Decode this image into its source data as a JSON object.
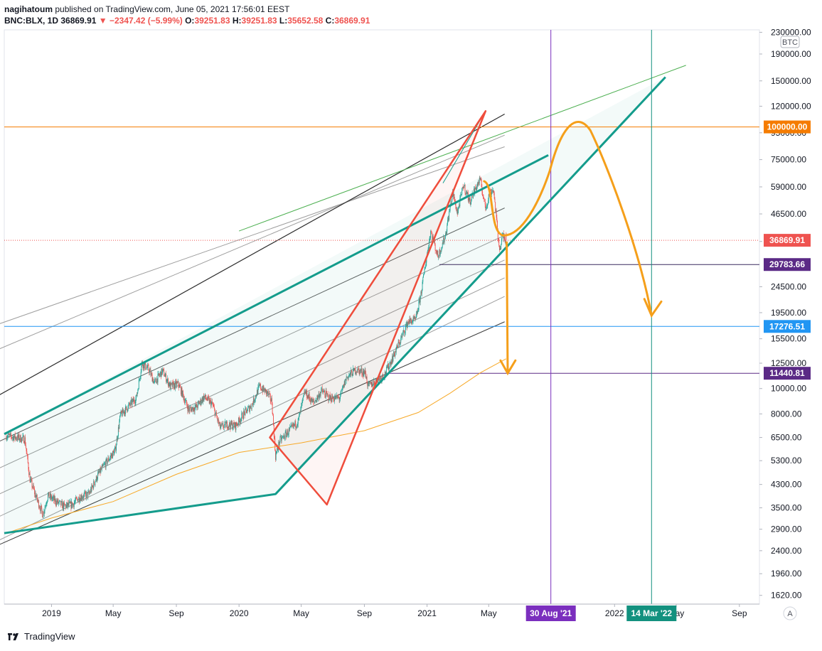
{
  "header": {
    "author": "nagihatoum",
    "published": "published on TradingView.com, June 05, 2021 17:56:01 EEST",
    "symbol": "BNC:BLX, 1D",
    "last": "36869.91",
    "arrow": "▼",
    "change": "−2347.42 (−5.99%)",
    "o_label": "O:",
    "o": "39251.83",
    "h_label": "H:",
    "h": "39251.83",
    "l_label": "L:",
    "l": "35652.58",
    "c_label": "C:",
    "c": "36869.91"
  },
  "footer": {
    "brand": "TradingView"
  },
  "colors": {
    "up": "#26a69a",
    "down": "#ef5350",
    "channel": "#149c8c",
    "wedge": "#ef4d3c",
    "projection": "#f59f1a",
    "ma": "#f7a928",
    "purple": "#7b2fbe",
    "teal": "#13917f",
    "blue": "#2196f3",
    "orange": "#f57c00"
  },
  "chart_data": {
    "type": "candlestick",
    "symbol": "BNC:BLX",
    "interval": "1D",
    "y_scale": "log",
    "currency_badge": "BTC",
    "ylim": [
      1500,
      235000
    ],
    "y_ticks": [
      "230000.00",
      "190000.00",
      "150000.00",
      "120000.00",
      "95000.00",
      "75000.00",
      "59000.00",
      "46500.00",
      "36500.00",
      "24500.00",
      "19500.00",
      "15500.00",
      "12500.00",
      "10000.00",
      "8000.00",
      "6500.00",
      "5300.00",
      "4300.00",
      "3500.00",
      "2900.00",
      "2400.00",
      "1960.00",
      "1620.00"
    ],
    "x_ticks": [
      "2019",
      "May",
      "Sep",
      "2020",
      "May",
      "Sep",
      "2021",
      "May",
      "2022",
      "May",
      "Sep"
    ],
    "price_labels": [
      {
        "value": 100000,
        "text": "100000.00",
        "color": "#f57c00"
      },
      {
        "value": 36869.91,
        "text": "36869.91",
        "color": "#ef5350"
      },
      {
        "value": 29783.66,
        "text": "29783.66",
        "color": "#5b2a86"
      },
      {
        "value": 17276.51,
        "text": "17276.51",
        "color": "#2196f3"
      },
      {
        "value": 11440.81,
        "text": "11440.81",
        "color": "#5b2a86"
      }
    ],
    "date_labels": [
      {
        "text": "30 Aug '21",
        "color": "#7b2fbe"
      },
      {
        "text": "14 Mar '22",
        "color": "#13917f"
      }
    ],
    "ohlc_last": {
      "open": 39251.83,
      "high": 39251.83,
      "low": 35652.58,
      "close": 36869.91
    },
    "price_path": [
      [
        "2018-10-05",
        6600
      ],
      [
        "2018-10-25",
        6500
      ],
      [
        "2018-11-10",
        6400
      ],
      [
        "2018-11-20",
        4500
      ],
      [
        "2018-12-01",
        3900
      ],
      [
        "2018-12-15",
        3300
      ],
      [
        "2018-12-25",
        3900
      ],
      [
        "2019-01-10",
        3700
      ],
      [
        "2019-01-25",
        3550
      ],
      [
        "2019-02-10",
        3600
      ],
      [
        "2019-02-25",
        3850
      ],
      [
        "2019-03-15",
        3950
      ],
      [
        "2019-04-02",
        4700
      ],
      [
        "2019-04-20",
        5300
      ],
      [
        "2019-05-05",
        5800
      ],
      [
        "2019-05-15",
        7900
      ],
      [
        "2019-06-01",
        8600
      ],
      [
        "2019-06-15",
        9200
      ],
      [
        "2019-06-26",
        12500
      ],
      [
        "2019-07-10",
        11800
      ],
      [
        "2019-07-20",
        10500
      ],
      [
        "2019-08-05",
        11700
      ],
      [
        "2019-08-20",
        10200
      ],
      [
        "2019-09-05",
        10400
      ],
      [
        "2019-09-25",
        8300
      ],
      [
        "2019-10-10",
        8500
      ],
      [
        "2019-10-25",
        9300
      ],
      [
        "2019-11-10",
        8700
      ],
      [
        "2019-11-25",
        7100
      ],
      [
        "2019-12-10",
        7300
      ],
      [
        "2019-12-25",
        7200
      ],
      [
        "2020-01-10",
        8000
      ],
      [
        "2020-01-25",
        8600
      ],
      [
        "2020-02-10",
        10200
      ],
      [
        "2020-02-25",
        9600
      ],
      [
        "2020-03-05",
        8900
      ],
      [
        "2020-03-12",
        5500
      ],
      [
        "2020-03-20",
        6300
      ],
      [
        "2020-04-05",
        6800
      ],
      [
        "2020-04-25",
        7500
      ],
      [
        "2020-05-08",
        9700
      ],
      [
        "2020-05-25",
        8800
      ],
      [
        "2020-06-10",
        9800
      ],
      [
        "2020-06-25",
        9200
      ],
      [
        "2020-07-15",
        9200
      ],
      [
        "2020-07-28",
        11000
      ],
      [
        "2020-08-15",
        11800
      ],
      [
        "2020-09-03",
        11500
      ],
      [
        "2020-09-08",
        10200
      ],
      [
        "2020-09-25",
        10700
      ],
      [
        "2020-10-10",
        11300
      ],
      [
        "2020-10-25",
        13000
      ],
      [
        "2020-11-10",
        15300
      ],
      [
        "2020-11-25",
        18000
      ],
      [
        "2020-12-10",
        18300
      ],
      [
        "2020-12-20",
        23000
      ],
      [
        "2021-01-08",
        40000
      ],
      [
        "2021-01-22",
        32000
      ],
      [
        "2021-02-05",
        38000
      ],
      [
        "2021-02-20",
        56000
      ],
      [
        "2021-03-01",
        47000
      ],
      [
        "2021-03-13",
        60000
      ],
      [
        "2021-03-25",
        52000
      ],
      [
        "2021-04-05",
        58000
      ],
      [
        "2021-04-14",
        63000
      ],
      [
        "2021-04-25",
        49000
      ],
      [
        "2021-05-03",
        56000
      ],
      [
        "2021-05-10",
        58000
      ],
      [
        "2021-05-15",
        47000
      ],
      [
        "2021-05-19",
        38000
      ],
      [
        "2021-05-23",
        34000
      ],
      [
        "2021-05-28",
        38500
      ],
      [
        "2021-06-04",
        36869.91
      ]
    ],
    "moving_average_path": [
      [
        "2018-10-05",
        2800
      ],
      [
        "2019-01-01",
        3200
      ],
      [
        "2019-05-01",
        3700
      ],
      [
        "2019-09-01",
        4700
      ],
      [
        "2020-01-01",
        5700
      ],
      [
        "2020-05-01",
        6200
      ],
      [
        "2020-09-01",
        6900
      ],
      [
        "2020-12-15",
        8100
      ],
      [
        "2021-02-15",
        9600
      ],
      [
        "2021-04-15",
        11500
      ],
      [
        "2021-06-04",
        13000
      ]
    ],
    "annotations": {
      "horizontal_levels": [
        100000,
        29783.66,
        17276.51,
        11440.81
      ],
      "vertical_dates": [
        "2021-08-30",
        "2022-03-14"
      ],
      "projection_targets": [
        11440.81,
        100000,
        19000
      ]
    }
  }
}
